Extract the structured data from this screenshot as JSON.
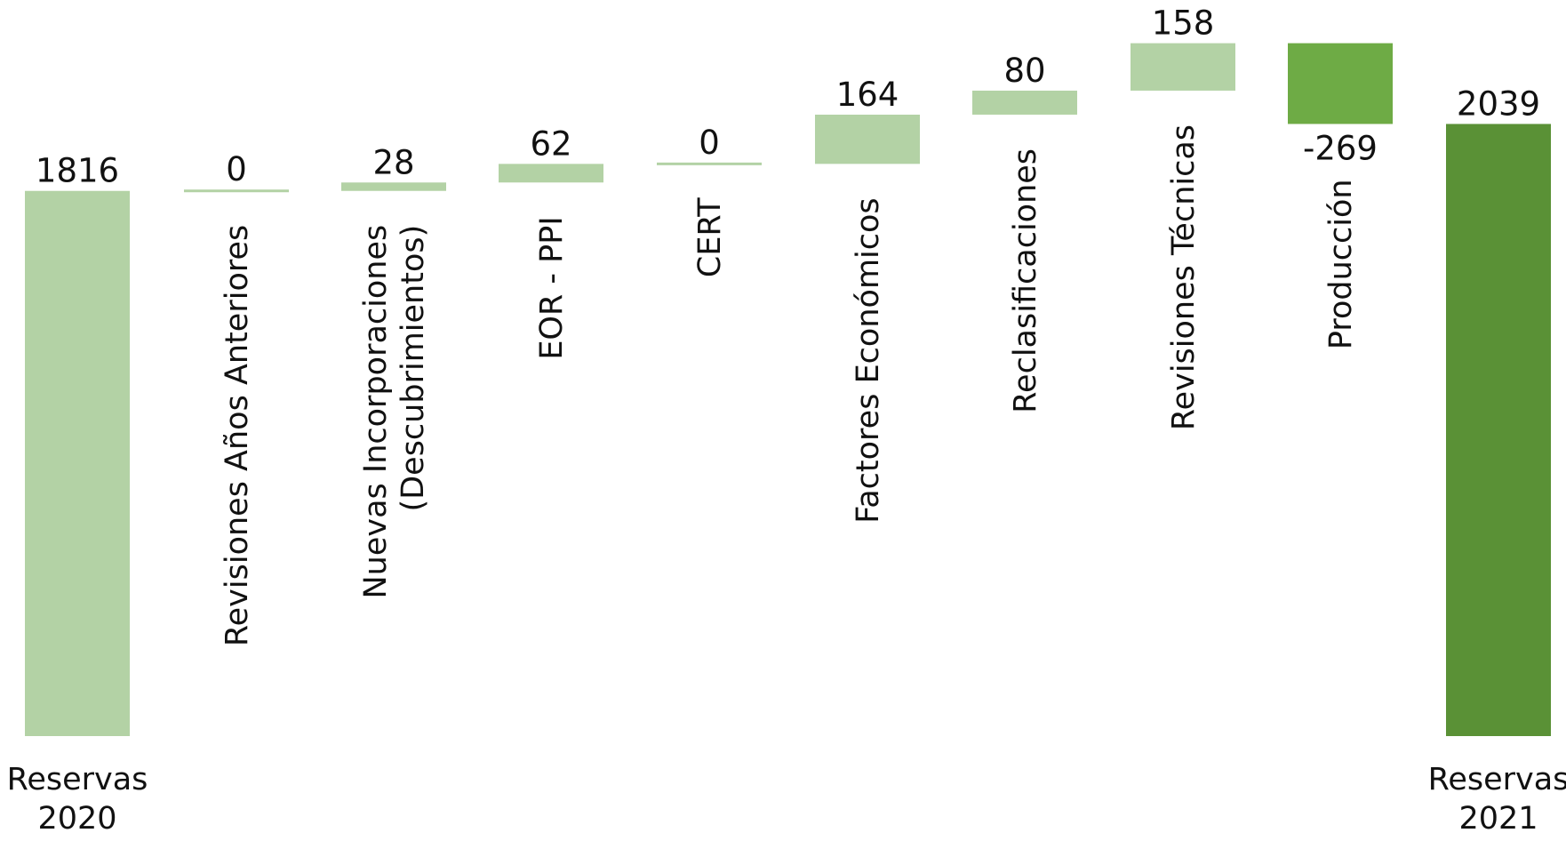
{
  "chart_data": {
    "type": "bar",
    "subtype": "waterfall",
    "title": "",
    "xlabel": "",
    "ylabel": "",
    "grid": false,
    "legend": "none",
    "steps": [
      {
        "label": "Reservas 2020",
        "label_lines": [
          "Reservas",
          "2020"
        ],
        "value": 1816,
        "display": "1816",
        "kind": "total"
      },
      {
        "label": "Revisiones Años Anteriores",
        "label_lines": [
          "Revisiones Años Anteriores"
        ],
        "value": 0,
        "display": "0",
        "kind": "delta"
      },
      {
        "label": "Nuevas Incorporaciones (Descubrimientos)",
        "label_lines": [
          "Nuevas Incorporaciones",
          "(Descubrimientos)"
        ],
        "value": 28,
        "display": "28",
        "kind": "delta"
      },
      {
        "label": "EOR - PPI",
        "label_lines": [
          "EOR - PPI"
        ],
        "value": 62,
        "display": "62",
        "kind": "delta"
      },
      {
        "label": "CERT",
        "label_lines": [
          "CERT"
        ],
        "value": 0,
        "display": "0",
        "kind": "delta"
      },
      {
        "label": "Factores Económicos",
        "label_lines": [
          "Factores Económicos"
        ],
        "value": 164,
        "display": "164",
        "kind": "delta"
      },
      {
        "label": "Reclasificaciones",
        "label_lines": [
          "Reclasificaciones"
        ],
        "value": 80,
        "display": "80",
        "kind": "delta"
      },
      {
        "label": "Revisiones Técnicas",
        "label_lines": [
          "Revisiones Técnicas"
        ],
        "value": 158,
        "display": "158",
        "kind": "delta"
      },
      {
        "label": "Producción",
        "label_lines": [
          "Producción"
        ],
        "value": -269,
        "display": "-269",
        "kind": "delta"
      },
      {
        "label": "Reservas 2021",
        "label_lines": [
          "Reservas",
          "2021"
        ],
        "value": 2039,
        "display": "2039",
        "kind": "total"
      }
    ],
    "colors": {
      "total_start": "#b3d2a5",
      "increase": "#b3d2a5",
      "decrease": "#6eab45",
      "total_end": "#5a9136"
    }
  }
}
